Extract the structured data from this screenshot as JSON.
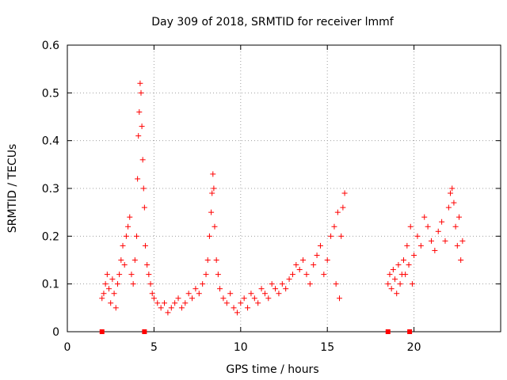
{
  "chart_data": {
    "type": "scatter",
    "title": "Day 309 of 2018, SRMTID for receiver lmmf",
    "xlabel": "GPS time / hours",
    "ylabel": "SRMTID / TECUs",
    "xlim": [
      0,
      25
    ],
    "ylim": [
      0,
      0.6
    ],
    "x_ticks": [
      0,
      5,
      10,
      15,
      20
    ],
    "y_ticks": [
      0,
      0.1,
      0.2,
      0.3,
      0.4,
      0.5,
      0.6
    ],
    "y_tick_labels": [
      "0",
      "0.1",
      "0.2",
      "0.3",
      "0.4",
      "0.5",
      "0.6"
    ],
    "grid": true,
    "marker": "+",
    "color": "#ff0000",
    "series": [
      {
        "name": "SRMTID",
        "points": [
          [
            2.0,
            0.07
          ],
          [
            2.1,
            0.08
          ],
          [
            2.2,
            0.1
          ],
          [
            2.3,
            0.12
          ],
          [
            2.4,
            0.09
          ],
          [
            2.5,
            0.06
          ],
          [
            2.6,
            0.11
          ],
          [
            2.7,
            0.08
          ],
          [
            2.8,
            0.05
          ],
          [
            2.9,
            0.1
          ],
          [
            3.0,
            0.12
          ],
          [
            3.1,
            0.15
          ],
          [
            3.2,
            0.18
          ],
          [
            3.3,
            0.14
          ],
          [
            3.4,
            0.2
          ],
          [
            3.5,
            0.22
          ],
          [
            3.6,
            0.24
          ],
          [
            3.7,
            0.12
          ],
          [
            3.8,
            0.1
          ],
          [
            3.9,
            0.15
          ],
          [
            4.0,
            0.2
          ],
          [
            4.05,
            0.32
          ],
          [
            4.1,
            0.41
          ],
          [
            4.15,
            0.46
          ],
          [
            4.2,
            0.52
          ],
          [
            4.25,
            0.5
          ],
          [
            4.3,
            0.43
          ],
          [
            4.35,
            0.36
          ],
          [
            4.4,
            0.3
          ],
          [
            4.45,
            0.26
          ],
          [
            4.5,
            0.18
          ],
          [
            4.6,
            0.14
          ],
          [
            4.7,
            0.12
          ],
          [
            4.8,
            0.1
          ],
          [
            4.9,
            0.08
          ],
          [
            5.0,
            0.07
          ],
          [
            5.2,
            0.06
          ],
          [
            5.4,
            0.05
          ],
          [
            5.6,
            0.06
          ],
          [
            5.8,
            0.04
          ],
          [
            6.0,
            0.05
          ],
          [
            6.2,
            0.06
          ],
          [
            6.4,
            0.07
          ],
          [
            6.6,
            0.05
          ],
          [
            6.8,
            0.06
          ],
          [
            7.0,
            0.08
          ],
          [
            7.2,
            0.07
          ],
          [
            7.4,
            0.09
          ],
          [
            7.6,
            0.08
          ],
          [
            7.8,
            0.1
          ],
          [
            8.0,
            0.12
          ],
          [
            8.1,
            0.15
          ],
          [
            8.2,
            0.2
          ],
          [
            8.3,
            0.25
          ],
          [
            8.35,
            0.29
          ],
          [
            8.4,
            0.33
          ],
          [
            8.45,
            0.3
          ],
          [
            8.5,
            0.22
          ],
          [
            8.6,
            0.15
          ],
          [
            8.7,
            0.12
          ],
          [
            8.8,
            0.09
          ],
          [
            9.0,
            0.07
          ],
          [
            9.2,
            0.06
          ],
          [
            9.4,
            0.08
          ],
          [
            9.6,
            0.05
          ],
          [
            9.8,
            0.04
          ],
          [
            10.0,
            0.06
          ],
          [
            10.2,
            0.07
          ],
          [
            10.4,
            0.05
          ],
          [
            10.6,
            0.08
          ],
          [
            10.8,
            0.07
          ],
          [
            11.0,
            0.06
          ],
          [
            11.2,
            0.09
          ],
          [
            11.4,
            0.08
          ],
          [
            11.6,
            0.07
          ],
          [
            11.8,
            0.1
          ],
          [
            12.0,
            0.09
          ],
          [
            12.2,
            0.08
          ],
          [
            12.4,
            0.1
          ],
          [
            12.6,
            0.09
          ],
          [
            12.8,
            0.11
          ],
          [
            13.0,
            0.12
          ],
          [
            13.2,
            0.14
          ],
          [
            13.4,
            0.13
          ],
          [
            13.6,
            0.15
          ],
          [
            13.8,
            0.12
          ],
          [
            14.0,
            0.1
          ],
          [
            14.2,
            0.14
          ],
          [
            14.4,
            0.16
          ],
          [
            14.6,
            0.18
          ],
          [
            14.8,
            0.12
          ],
          [
            15.0,
            0.15
          ],
          [
            15.2,
            0.2
          ],
          [
            15.4,
            0.22
          ],
          [
            15.5,
            0.1
          ],
          [
            15.6,
            0.25
          ],
          [
            15.7,
            0.07
          ],
          [
            15.8,
            0.2
          ],
          [
            15.9,
            0.26
          ],
          [
            16.0,
            0.29
          ],
          [
            18.5,
            0.1
          ],
          [
            18.6,
            0.12
          ],
          [
            18.7,
            0.09
          ],
          [
            18.8,
            0.13
          ],
          [
            18.9,
            0.11
          ],
          [
            19.0,
            0.08
          ],
          [
            19.1,
            0.14
          ],
          [
            19.2,
            0.1
          ],
          [
            19.3,
            0.12
          ],
          [
            19.4,
            0.15
          ],
          [
            19.5,
            0.12
          ],
          [
            19.6,
            0.18
          ],
          [
            19.7,
            0.14
          ],
          [
            19.8,
            0.22
          ],
          [
            19.9,
            0.1
          ],
          [
            20.0,
            0.16
          ],
          [
            20.2,
            0.2
          ],
          [
            20.4,
            0.18
          ],
          [
            20.6,
            0.24
          ],
          [
            20.8,
            0.22
          ],
          [
            21.0,
            0.19
          ],
          [
            21.2,
            0.17
          ],
          [
            21.4,
            0.21
          ],
          [
            21.6,
            0.23
          ],
          [
            21.8,
            0.19
          ],
          [
            22.0,
            0.26
          ],
          [
            22.1,
            0.29
          ],
          [
            22.2,
            0.3
          ],
          [
            22.3,
            0.27
          ],
          [
            22.4,
            0.22
          ],
          [
            22.5,
            0.18
          ],
          [
            22.6,
            0.24
          ],
          [
            22.7,
            0.15
          ],
          [
            22.8,
            0.19
          ]
        ]
      }
    ],
    "data_gap_markers_x": [
      2.0,
      4.45,
      18.5,
      19.75
    ]
  }
}
